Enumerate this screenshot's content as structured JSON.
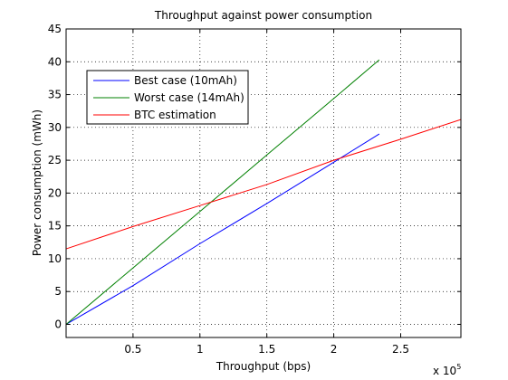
{
  "chart_data": {
    "type": "line",
    "title": "Throughput against power consumption",
    "xlabel": "Throughput (bps)",
    "ylabel": "Power consumption (mWh)",
    "x_exponent": "x 10",
    "x_exponent_power": "5",
    "xlim": [
      0,
      295000
    ],
    "ylim": [
      -2,
      45
    ],
    "x_ticks": [
      {
        "value": 50000,
        "label": "0.5"
      },
      {
        "value": 100000,
        "label": "1"
      },
      {
        "value": 150000,
        "label": "1.5"
      },
      {
        "value": 200000,
        "label": "2"
      },
      {
        "value": 250000,
        "label": "2.5"
      }
    ],
    "y_ticks": [
      {
        "value": 0,
        "label": "0"
      },
      {
        "value": 5,
        "label": "5"
      },
      {
        "value": 10,
        "label": "10"
      },
      {
        "value": 15,
        "label": "15"
      },
      {
        "value": 20,
        "label": "20"
      },
      {
        "value": 25,
        "label": "25"
      },
      {
        "value": 30,
        "label": "30"
      },
      {
        "value": 35,
        "label": "35"
      },
      {
        "value": 40,
        "label": "40"
      },
      {
        "value": 45,
        "label": "45"
      }
    ],
    "grid": true,
    "legend_position": "top-left",
    "series": [
      {
        "name": "Best case (10mAh)",
        "color": "#0000ff",
        "x": [
          0,
          50000,
          100000,
          150000,
          200000,
          234000
        ],
        "y": [
          0,
          5.9,
          12.3,
          18.4,
          24.7,
          29.0
        ]
      },
      {
        "name": "Worst case (14mAh)",
        "color": "#008000",
        "x": [
          0,
          50000,
          100000,
          150000,
          200000,
          234000
        ],
        "y": [
          0,
          8.6,
          17.2,
          25.8,
          34.4,
          40.3
        ]
      },
      {
        "name": "BTC estimation",
        "color": "#ff0000",
        "x": [
          0,
          50000,
          100000,
          150000,
          200000,
          250000,
          295000
        ],
        "y": [
          11.5,
          14.9,
          18.1,
          21.3,
          25.0,
          28.2,
          31.2
        ]
      }
    ]
  }
}
